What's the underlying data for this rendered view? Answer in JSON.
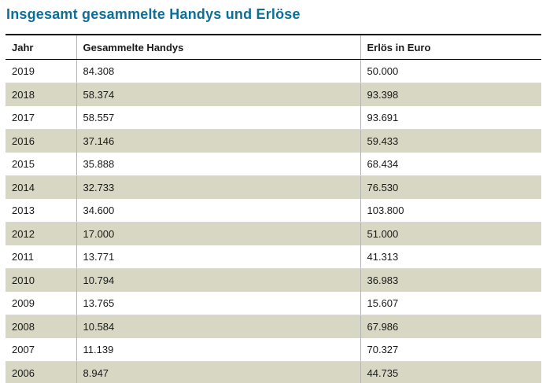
{
  "title": "Insgesamt gesammelte Handys und Erlöse",
  "colors": {
    "title_accent": "#0e6f96",
    "row_alt_background": "#d7d7c3",
    "border_dark": "#000000",
    "border_light": "#b5b5b5"
  },
  "chart_data": {
    "type": "table",
    "title": "Insgesamt gesammelte Handys und Erlöse",
    "columns": [
      "Jahr",
      "Gesammelte Handys",
      "Erlös in Euro"
    ],
    "rows": [
      [
        "2019",
        "84.308",
        "50.000"
      ],
      [
        "2018",
        "58.374",
        "93.398"
      ],
      [
        "2017",
        "58.557",
        "93.691"
      ],
      [
        "2016",
        "37.146",
        "59.433"
      ],
      [
        "2015",
        "35.888",
        "68.434"
      ],
      [
        "2014",
        "32.733",
        "76.530"
      ],
      [
        "2013",
        "34.600",
        "103.800"
      ],
      [
        "2012",
        "17.000",
        "51.000"
      ],
      [
        "2011",
        "13.771",
        "41.313"
      ],
      [
        "2010",
        "10.794",
        "36.983"
      ],
      [
        "2009",
        "13.765",
        "15.607"
      ],
      [
        "2008",
        "10.584",
        "67.986"
      ],
      [
        "2007",
        "11.139",
        "70.327"
      ],
      [
        "2006",
        "8.947",
        "44.735"
      ]
    ]
  }
}
